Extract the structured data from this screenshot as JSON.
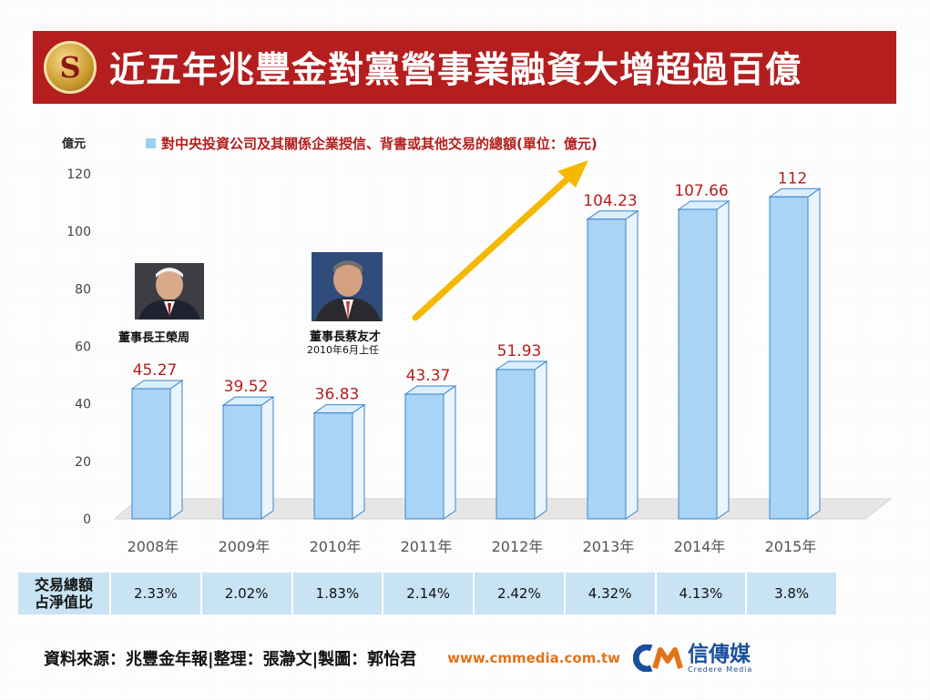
{
  "header": {
    "title": "近五年兆豐金對黨營事業融資大增超過百億",
    "logo_glyph": "S"
  },
  "unit_label": "億元",
  "legend": {
    "label": "對中央投資公司及其關係企業授信、背書或其他交易的總額(單位：億元)",
    "swatch_color": "#9cd0f0"
  },
  "chart_data": {
    "type": "bar",
    "categories": [
      "2008年",
      "2009年",
      "2010年",
      "2011年",
      "2012年",
      "2013年",
      "2014年",
      "2015年"
    ],
    "values": [
      45.27,
      39.52,
      36.83,
      43.37,
      51.93,
      104.23,
      107.66,
      112
    ],
    "value_labels": [
      "45.27",
      "39.52",
      "36.83",
      "43.37",
      "51.93",
      "104.23",
      "107.66",
      "112"
    ],
    "ylabel": "億元",
    "ylim": [
      0,
      120
    ],
    "yticks": [
      0,
      20,
      40,
      60,
      80,
      100,
      120
    ],
    "grid": false,
    "bar_color": "#a9d4f5",
    "bar_edge_color": "#3b84c9",
    "label_color": "#b41e1e",
    "arrow_color": "#f5b800"
  },
  "annotations": {
    "person1": {
      "caption": "董事長王榮周"
    },
    "person2": {
      "caption": "董事長蔡友才",
      "sub": "2010年6月上任"
    }
  },
  "ratio_table": {
    "header_line1": "交易總額",
    "header_line2": "占淨值比",
    "values": [
      "2.33%",
      "2.02%",
      "1.83%",
      "2.14%",
      "2.42%",
      "4.32%",
      "4.13%",
      "3.8%"
    ]
  },
  "footer": {
    "source": "資料來源：兆豐金年報|整理：張瀞文|製圖：郭怡君",
    "url": "www.cmmedia.com.tw",
    "brand_cn": "信傳媒",
    "brand_en": "Credere Media"
  }
}
